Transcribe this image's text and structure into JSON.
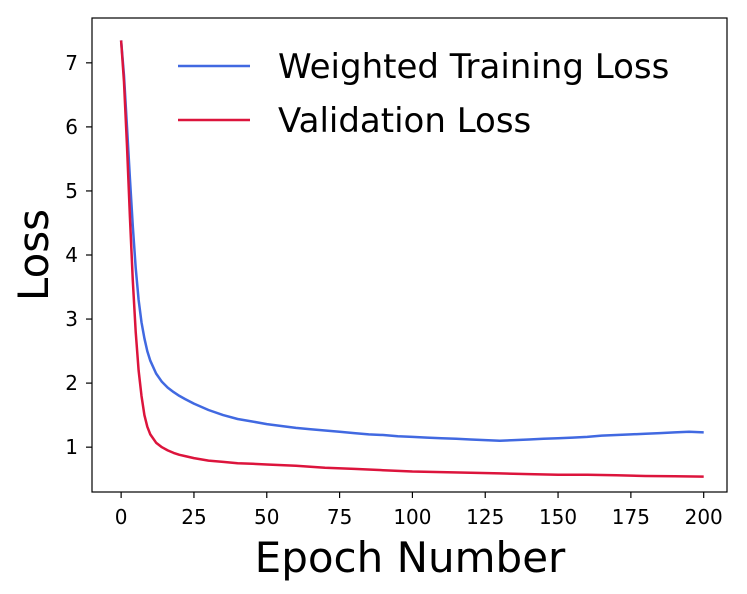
{
  "chart_data": {
    "type": "line",
    "xlabel": "Epoch Number",
    "ylabel": "Loss",
    "xlim": [
      -10,
      208
    ],
    "ylim": [
      0.3,
      7.7
    ],
    "xticks": [
      0,
      25,
      50,
      75,
      100,
      125,
      150,
      175,
      200
    ],
    "yticks": [
      1,
      2,
      3,
      4,
      5,
      6,
      7
    ],
    "grid": false,
    "legend_position": "top-right",
    "colors": {
      "training": "#4169E1",
      "validation": "#DC143C"
    },
    "series": [
      {
        "name": "Weighted Training Loss",
        "color": "#4169E1",
        "x": [
          0,
          1,
          2,
          3,
          4,
          5,
          6,
          7,
          8,
          9,
          10,
          12,
          14,
          16,
          18,
          20,
          22,
          25,
          30,
          35,
          40,
          45,
          50,
          55,
          60,
          65,
          70,
          75,
          80,
          85,
          90,
          95,
          100,
          105,
          110,
          115,
          120,
          125,
          130,
          135,
          140,
          145,
          150,
          155,
          160,
          165,
          170,
          175,
          180,
          185,
          190,
          195,
          200
        ],
        "y": [
          7.35,
          6.8,
          6.0,
          5.2,
          4.45,
          3.8,
          3.3,
          2.95,
          2.7,
          2.5,
          2.35,
          2.15,
          2.02,
          1.93,
          1.86,
          1.8,
          1.75,
          1.68,
          1.58,
          1.5,
          1.44,
          1.4,
          1.36,
          1.33,
          1.3,
          1.28,
          1.26,
          1.24,
          1.22,
          1.2,
          1.19,
          1.17,
          1.16,
          1.15,
          1.14,
          1.13,
          1.12,
          1.11,
          1.1,
          1.11,
          1.12,
          1.13,
          1.14,
          1.15,
          1.16,
          1.18,
          1.19,
          1.2,
          1.21,
          1.22,
          1.23,
          1.24,
          1.23
        ]
      },
      {
        "name": "Validation Loss",
        "color": "#DC143C",
        "x": [
          0,
          1,
          2,
          3,
          4,
          5,
          6,
          7,
          8,
          9,
          10,
          12,
          14,
          16,
          18,
          20,
          22,
          25,
          30,
          35,
          40,
          45,
          50,
          60,
          70,
          80,
          90,
          100,
          110,
          120,
          130,
          140,
          150,
          160,
          170,
          180,
          190,
          200
        ],
        "y": [
          7.35,
          6.7,
          5.7,
          4.6,
          3.6,
          2.8,
          2.2,
          1.8,
          1.5,
          1.32,
          1.2,
          1.07,
          1.0,
          0.95,
          0.91,
          0.88,
          0.86,
          0.83,
          0.79,
          0.77,
          0.75,
          0.74,
          0.73,
          0.71,
          0.68,
          0.66,
          0.64,
          0.62,
          0.61,
          0.6,
          0.59,
          0.58,
          0.57,
          0.57,
          0.56,
          0.55,
          0.545,
          0.54
        ]
      }
    ]
  }
}
